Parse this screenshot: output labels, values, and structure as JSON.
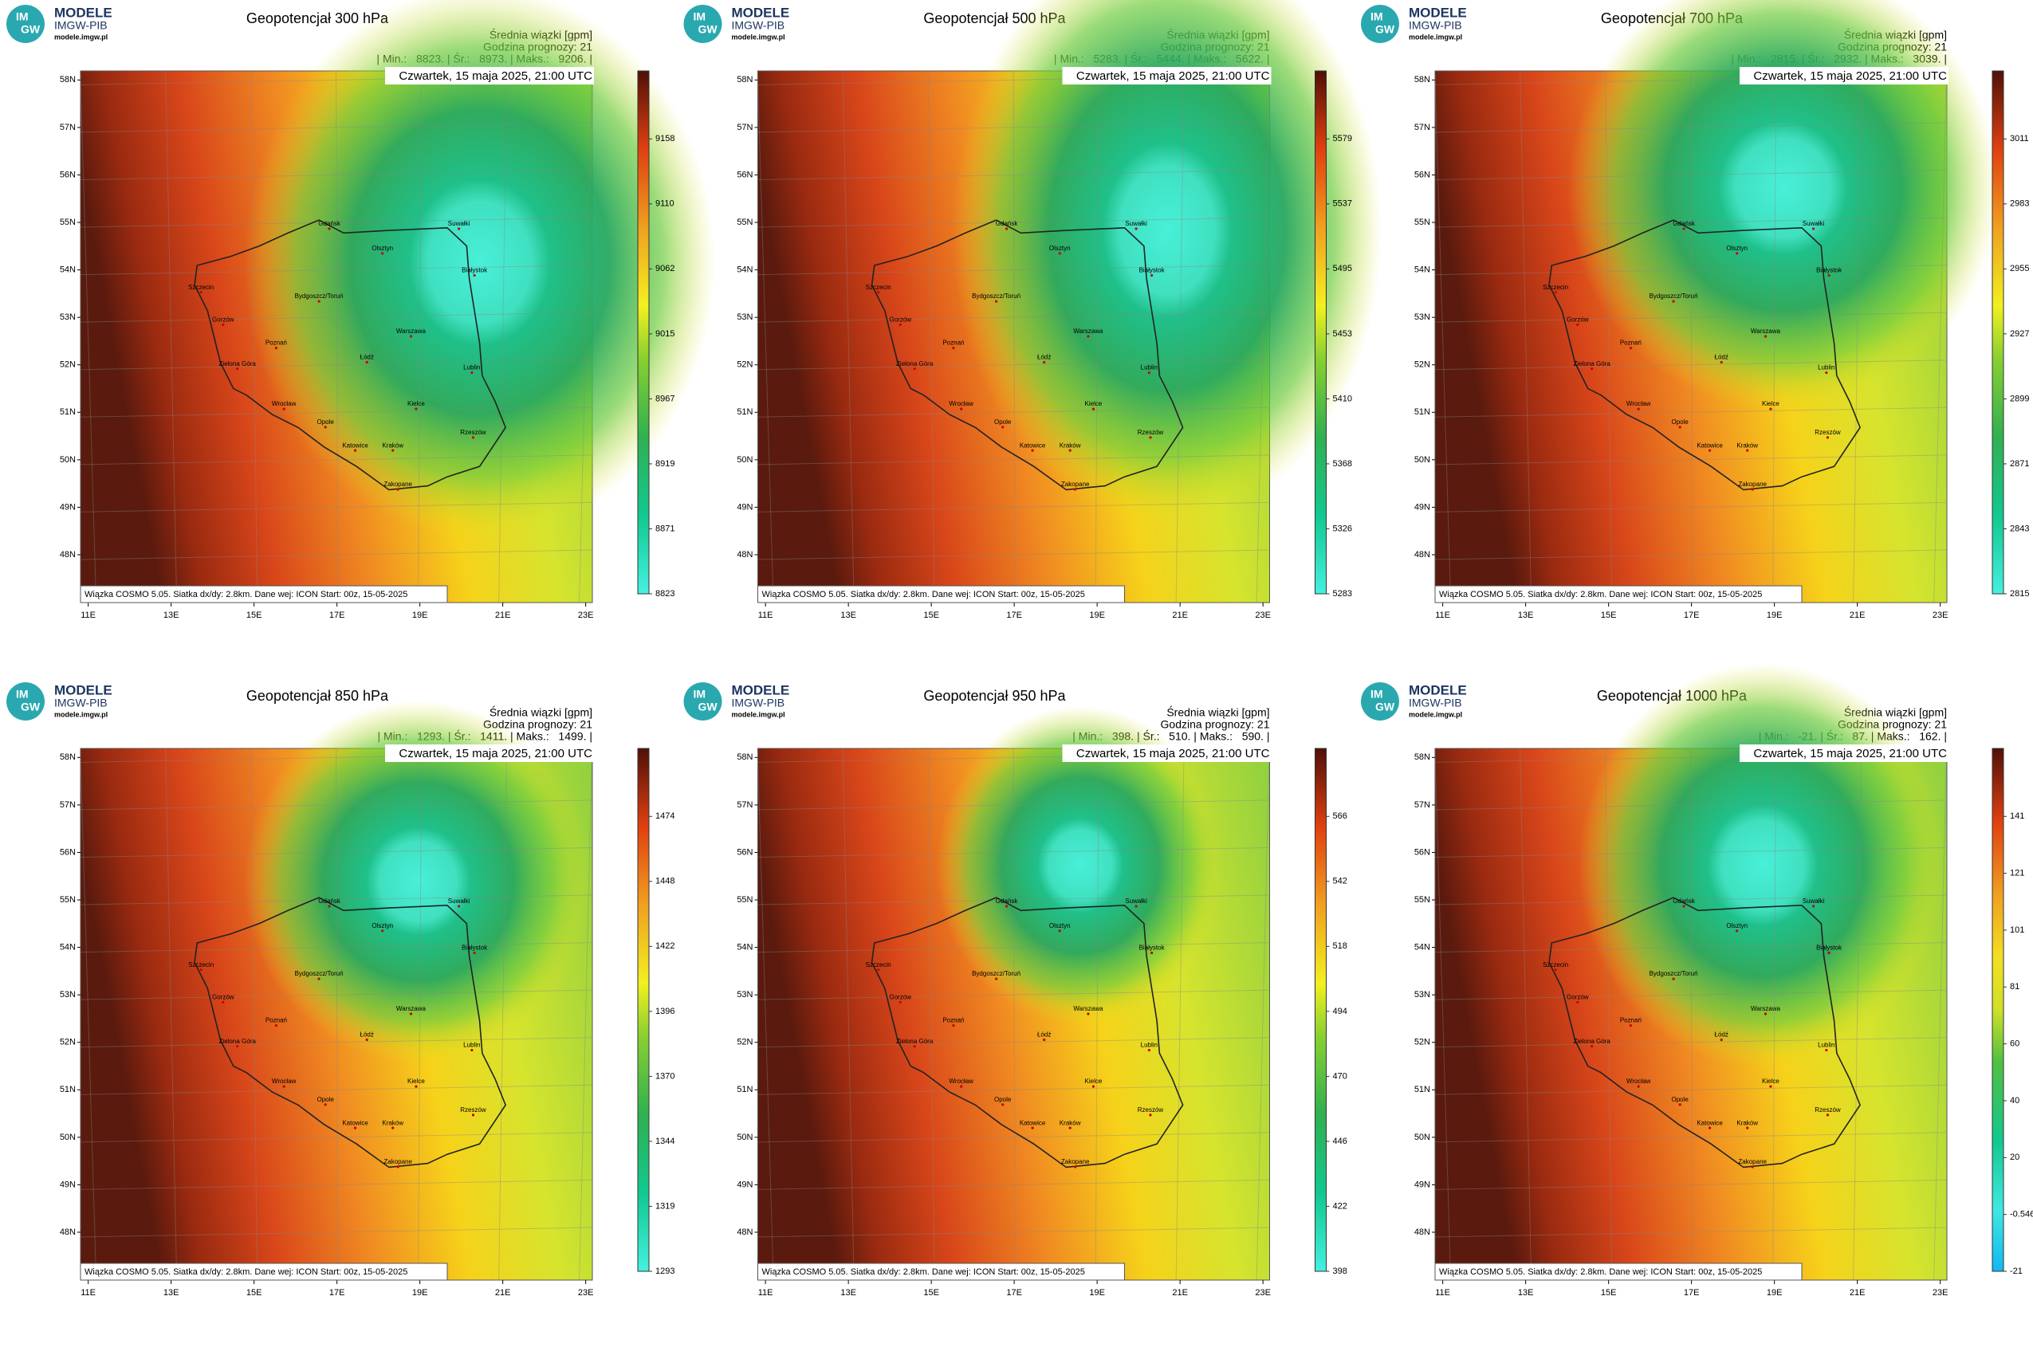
{
  "common": {
    "logo_name": "MODELE",
    "logo_org": "IMGW-PIB",
    "logo_url": "modele.imgw.pl",
    "logo_im": "IM",
    "logo_gw": "GW",
    "subtitle": "Średnia wiązki [gpm]",
    "forecast_hour": "Godzina prognozy: 21",
    "date": "Czwartek, 15 maja 2025, 21:00 UTC",
    "footer": "Wiązka COSMO 5.05. Siatka dx/dy: 2.8km. Dane wej: ICON Start: 00z, 15-05-2025",
    "lat_labels": [
      "58N",
      "57N",
      "56N",
      "55N",
      "54N",
      "53N",
      "52N",
      "51N",
      "50N",
      "49N",
      "48N"
    ],
    "lon_labels": [
      "11E",
      "13E",
      "15E",
      "17E",
      "19E",
      "21E",
      "23E"
    ]
  },
  "cities": [
    "Gdańsk",
    "Olsztyn",
    "Suwałki",
    "Białystok",
    "Szczecin",
    "Bydgoszcz/Toruń",
    "Gorzów",
    "Poznań",
    "Warszawa",
    "Zielona Góra",
    "Łódź",
    "Lublin",
    "Wrocław",
    "Opole",
    "Kielce",
    "Katowice",
    "Kraków",
    "Rzeszów",
    "Zakopane"
  ],
  "panels": [
    {
      "title": "Geopotencjał 300 hPa",
      "stats": "| Min.:   8823. | Śr.:   8973. | Maks.:   9206. |",
      "colorbar": [
        "9158",
        "9110",
        "9062",
        "9015",
        "8967",
        "8919",
        "8871",
        "8823"
      ]
    },
    {
      "title": "Geopotencjał 500 hPa",
      "stats": "| Min.:   5283. | Śr.:   5444. | Maks.:   5622. |",
      "colorbar": [
        "5579",
        "5537",
        "5495",
        "5453",
        "5410",
        "5368",
        "5326",
        "5283"
      ]
    },
    {
      "title": "Geopotencjał 700 hPa",
      "stats": "| Min.:   2815. | Śr.:   2932. | Maks.:   3039. |",
      "colorbar": [
        "3011",
        "2983",
        "2955",
        "2927",
        "2899",
        "2871",
        "2843",
        "2815"
      ]
    },
    {
      "title": "Geopotencjał 850 hPa",
      "stats": "| Min.:   1293. | Śr.:   1411. | Maks.:   1499. |",
      "colorbar": [
        "1474",
        "1448",
        "1422",
        "1396",
        "1370",
        "1344",
        "1319",
        "1293"
      ]
    },
    {
      "title": "Geopotencjał 950 hPa",
      "stats": "| Min.:   398. | Śr.:   510. | Maks.:   590. |",
      "colorbar": [
        "566",
        "542",
        "518",
        "494",
        "470",
        "446",
        "422",
        "398"
      ]
    },
    {
      "title": "Geopotencjał 1000 hPa",
      "stats": "| Min.:   -21. | Śr.:   87. | Maks.:   162. |",
      "colorbar": [
        "141",
        "121",
        "101",
        "81",
        "60",
        "40",
        "20",
        "-0.546",
        "-21"
      ]
    }
  ]
}
